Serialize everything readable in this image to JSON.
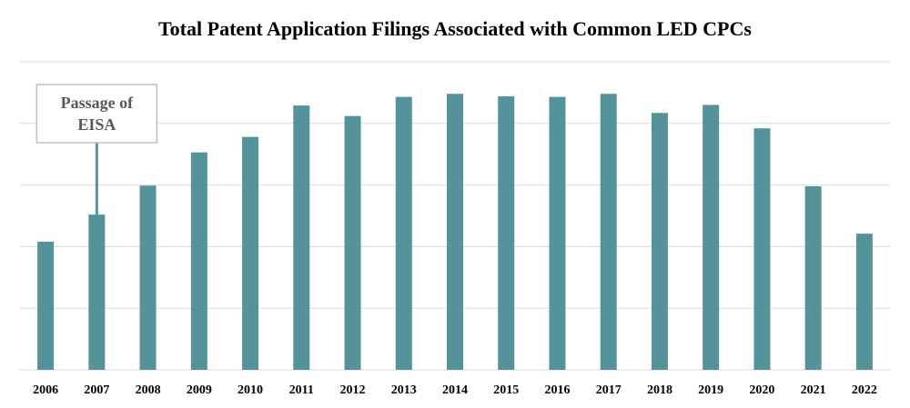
{
  "chart_data": {
    "type": "bar",
    "title": "Total Patent Application Filings Associated with Common LED CPCs",
    "xlabel": "",
    "ylabel": "",
    "categories": [
      "2006",
      "2007",
      "2008",
      "2009",
      "2010",
      "2011",
      "2012",
      "2013",
      "2014",
      "2015",
      "2016",
      "2017",
      "2018",
      "2019",
      "2020",
      "2021",
      "2022"
    ],
    "values": [
      2.08,
      2.52,
      2.99,
      3.53,
      3.78,
      4.29,
      4.12,
      4.43,
      4.48,
      4.44,
      4.43,
      4.48,
      4.17,
      4.3,
      3.92,
      2.98,
      2.21
    ],
    "ylim": [
      0,
      5
    ],
    "yticks": [
      0,
      1,
      2,
      3,
      4,
      5
    ],
    "show_y_tick_labels": false,
    "grid": true,
    "color": "#55939b",
    "annotation": {
      "line1": "Passage of",
      "line2": "EISA",
      "category": "2007"
    }
  }
}
